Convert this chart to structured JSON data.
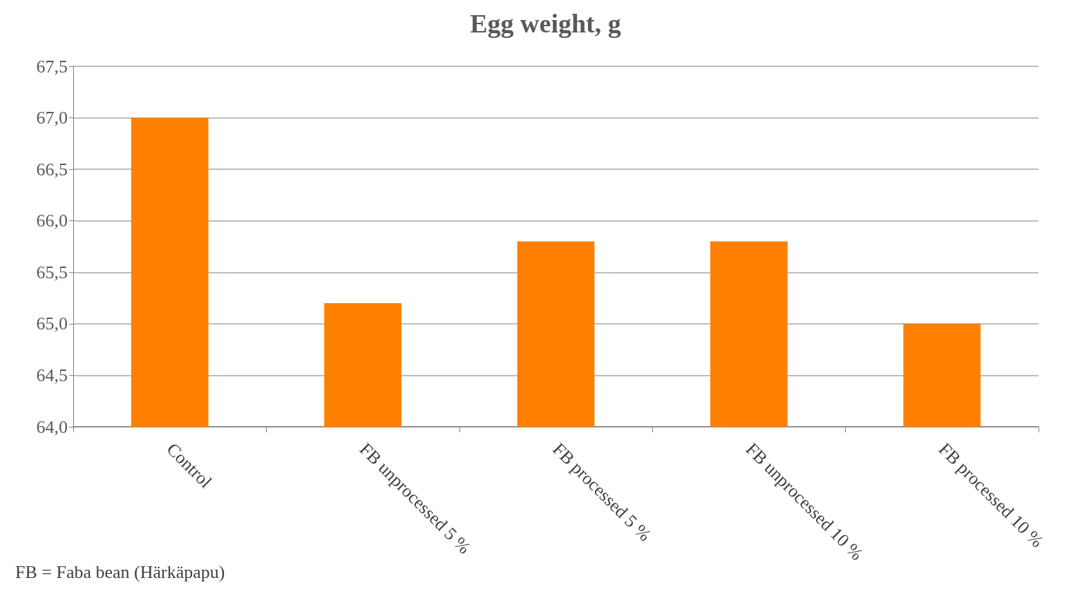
{
  "chart_data": {
    "type": "bar",
    "title": "Egg weight, g",
    "categories": [
      "Control",
      "FB unprocessed 5 %",
      "FB processed 5 %",
      "FB unprocessed 10 %",
      "FB processed 10 %"
    ],
    "values": [
      67.0,
      65.2,
      65.8,
      65.8,
      65.0
    ],
    "color": "#ff8000",
    "ylim": [
      64,
      67.5
    ],
    "yticks": [
      {
        "value": 64,
        "label": "64,0"
      },
      {
        "value": 64.5,
        "label": "64,5"
      },
      {
        "value": 65,
        "label": "65,0"
      },
      {
        "value": 65.5,
        "label": "65,5"
      },
      {
        "value": 66,
        "label": "66,0"
      },
      {
        "value": 66.5,
        "label": "66,5"
      },
      {
        "value": 67,
        "label": "67,0"
      },
      {
        "value": 67.5,
        "label": "67,5"
      }
    ],
    "grid": "y",
    "annotations": [
      "FB = Faba bean (Härkäpapu)"
    ]
  }
}
